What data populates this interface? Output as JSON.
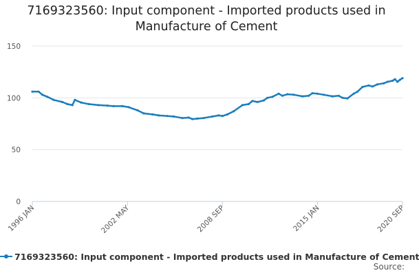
{
  "title": {
    "line1": "7169323560: Input component - Imported products used in",
    "line2": "Manufacture of Cement"
  },
  "legend": {
    "label": "7169323560: Input component - Imported products used in Manufacture of Cement"
  },
  "source": {
    "label": "Source:"
  },
  "colors": {
    "series": "#1a7dbd",
    "grid": "#e6e6e6",
    "axis": "#c0d0e0"
  },
  "chart_data": {
    "type": "line",
    "title": "7169323560: Input component - Imported products used in Manufacture of Cement",
    "xlabel": "",
    "ylabel": "",
    "ylim": [
      0,
      150
    ],
    "yticks": [
      0,
      50,
      100,
      150
    ],
    "xlim": [
      "1996-01",
      "2020-09"
    ],
    "xticks": [
      {
        "label": "1996 JAN",
        "date": "1996-01"
      },
      {
        "label": "2002 MAY",
        "date": "2002-05"
      },
      {
        "label": "2008 SEP",
        "date": "2008-09"
      },
      {
        "label": "2015 JAN",
        "date": "2015-01"
      },
      {
        "label": "2020 SEP",
        "date": "2020-09"
      }
    ],
    "grid": true,
    "legend_position": "bottom",
    "series": [
      {
        "name": "7169323560: Input component - Imported products used in Manufacture of Cement",
        "points": [
          [
            "1996-01",
            106
          ],
          [
            "1996-06",
            106
          ],
          [
            "1996-09",
            103
          ],
          [
            "1997-01",
            101
          ],
          [
            "1997-06",
            98
          ],
          [
            "1998-01",
            96
          ],
          [
            "1998-05",
            94
          ],
          [
            "1998-09",
            93
          ],
          [
            "1998-11",
            98
          ],
          [
            "1999-04",
            95.5
          ],
          [
            "1999-10",
            94
          ],
          [
            "2000-06",
            93
          ],
          [
            "2001-01",
            92.5
          ],
          [
            "2001-06",
            92
          ],
          [
            "2002-01",
            92
          ],
          [
            "2002-06",
            91
          ],
          [
            "2003-01",
            88
          ],
          [
            "2003-06",
            85
          ],
          [
            "2004-01",
            84
          ],
          [
            "2004-06",
            83
          ],
          [
            "2005-01",
            82.5
          ],
          [
            "2005-06",
            82
          ],
          [
            "2006-01",
            80.5
          ],
          [
            "2006-06",
            81
          ],
          [
            "2006-09",
            79.5
          ],
          [
            "2007-01",
            80
          ],
          [
            "2007-06",
            80.5
          ],
          [
            "2008-01",
            82
          ],
          [
            "2008-06",
            83
          ],
          [
            "2008-09",
            82.5
          ],
          [
            "2009-01",
            84
          ],
          [
            "2009-06",
            87
          ],
          [
            "2010-01",
            93
          ],
          [
            "2010-06",
            94
          ],
          [
            "2010-09",
            97
          ],
          [
            "2011-01",
            96
          ],
          [
            "2011-06",
            97.5
          ],
          [
            "2011-09",
            100
          ],
          [
            "2012-01",
            101
          ],
          [
            "2012-06",
            104
          ],
          [
            "2012-09",
            102
          ],
          [
            "2013-01",
            103.5
          ],
          [
            "2013-06",
            103
          ],
          [
            "2014-01",
            101.5
          ],
          [
            "2014-06",
            102
          ],
          [
            "2014-09",
            104.5
          ],
          [
            "2015-01",
            104
          ],
          [
            "2015-06",
            103
          ],
          [
            "2016-01",
            101.5
          ],
          [
            "2016-06",
            102
          ],
          [
            "2016-09",
            100
          ],
          [
            "2017-01",
            99.5
          ],
          [
            "2017-06",
            104
          ],
          [
            "2017-09",
            106
          ],
          [
            "2018-01",
            110.5
          ],
          [
            "2018-06",
            112
          ],
          [
            "2018-09",
            111
          ],
          [
            "2019-01",
            113
          ],
          [
            "2019-06",
            114
          ],
          [
            "2019-09",
            115.5
          ],
          [
            "2020-01",
            116.5
          ],
          [
            "2020-03",
            118
          ],
          [
            "2020-05",
            115.5
          ],
          [
            "2020-07",
            117.5
          ],
          [
            "2020-09",
            119
          ]
        ]
      }
    ]
  }
}
